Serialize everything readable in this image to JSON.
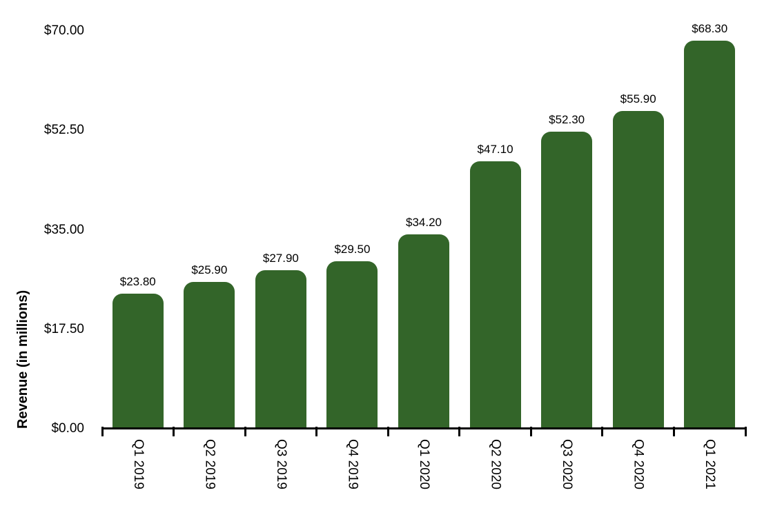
{
  "chart_data": {
    "type": "bar",
    "title": "",
    "xlabel": "",
    "ylabel": "Revenue (in millions)",
    "categories": [
      "Q1 2019",
      "Q2 2019",
      "Q3 2019",
      "Q4 2019",
      "Q1 2020",
      "Q2 2020",
      "Q3 2020",
      "Q4 2020",
      "Q1 2021"
    ],
    "values": [
      23.8,
      25.9,
      27.9,
      29.5,
      34.2,
      47.1,
      52.3,
      55.9,
      68.3
    ],
    "value_labels": [
      "$23.80",
      "$25.90",
      "$27.90",
      "$29.50",
      "$34.20",
      "$47.10",
      "$52.30",
      "$55.90",
      "$68.30"
    ],
    "y_ticks": [
      {
        "label": "$0.00",
        "value": 0
      },
      {
        "label": "$17.50",
        "value": 17.5
      },
      {
        "label": "$35.00",
        "value": 35
      },
      {
        "label": "$52.50",
        "value": 52.5
      },
      {
        "label": "$70.00",
        "value": 70
      }
    ],
    "ylim": [
      0,
      70
    ],
    "grid": false,
    "legend": null,
    "bar_color": "#336529",
    "axis_color": "#000000",
    "text_color": "#000000",
    "background": "#ffffff"
  }
}
